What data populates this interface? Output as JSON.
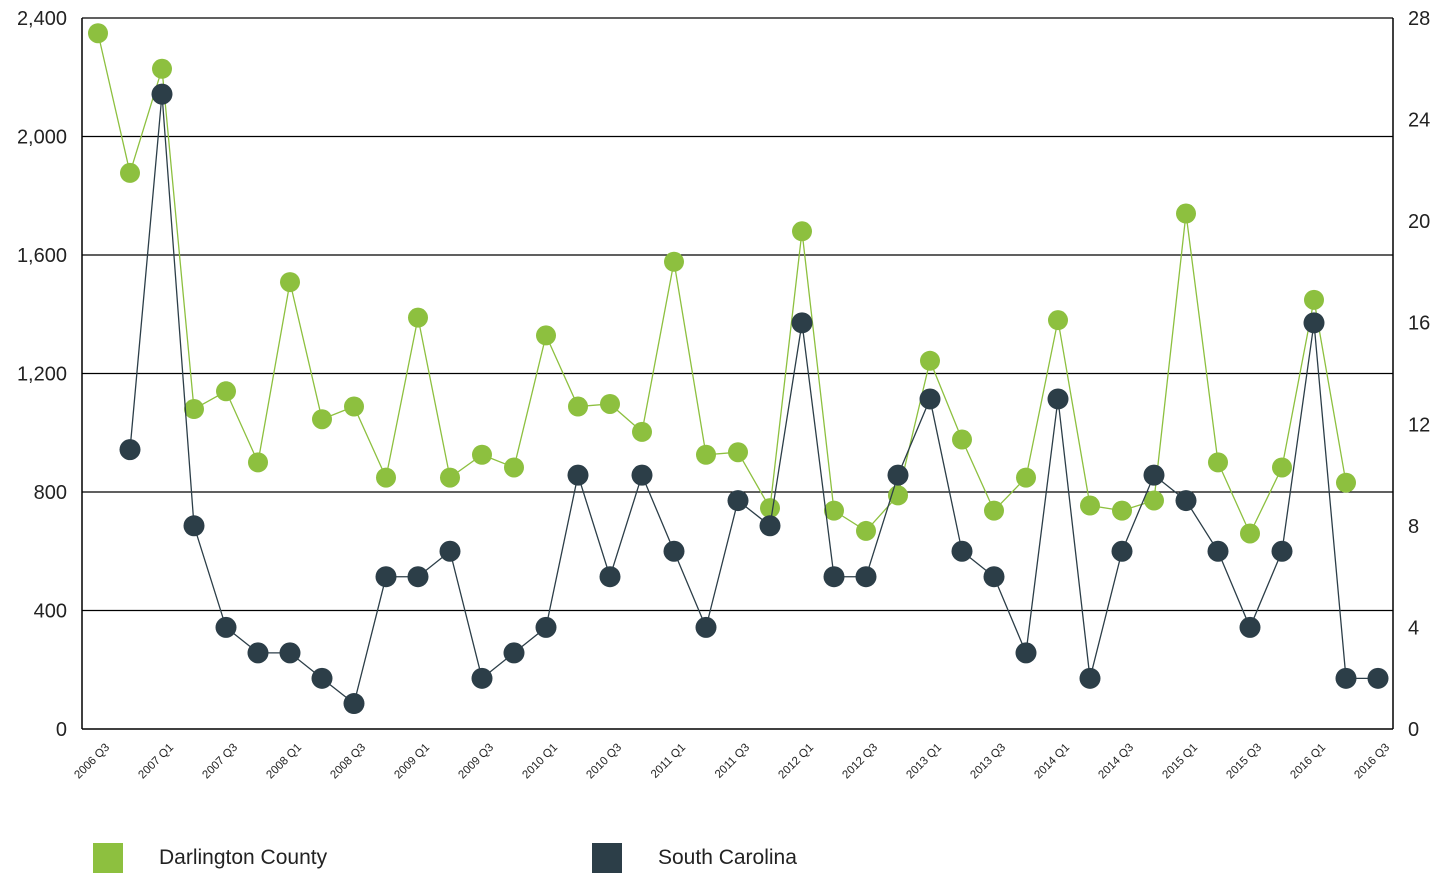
{
  "chart_data": {
    "type": "line",
    "categories": [
      "2006 Q3",
      "2006 Q4",
      "2007 Q1",
      "2007 Q2",
      "2007 Q3",
      "2007 Q4",
      "2008 Q1",
      "2008 Q2",
      "2008 Q3",
      "2008 Q4",
      "2009 Q1",
      "2009 Q2",
      "2009 Q3",
      "2009 Q4",
      "2010 Q1",
      "2010 Q2",
      "2010 Q3",
      "2010 Q4",
      "2011 Q1",
      "2011 Q2",
      "2011 Q3",
      "2011 Q4",
      "2012 Q1",
      "2012 Q2",
      "2012 Q3",
      "2012 Q4",
      "2013 Q1",
      "2013 Q2",
      "2013 Q3",
      "2013 Q4",
      "2014 Q1",
      "2014 Q2",
      "2014 Q3",
      "2014 Q4",
      "2015 Q1",
      "2015 Q2",
      "2015 Q3",
      "2015 Q4",
      "2016 Q1",
      "2016 Q2",
      "2016 Q3"
    ],
    "tick_labels": [
      "2006 Q3",
      "2007 Q1",
      "2007 Q3",
      "2008 Q1",
      "2008 Q3",
      "2009 Q1",
      "2009 Q3",
      "2010 Q1",
      "2010 Q3",
      "2011 Q1",
      "2011 Q3",
      "2012 Q1",
      "2012 Q3",
      "2013 Q1",
      "2013 Q3",
      "2014 Q1",
      "2014 Q3",
      "2015 Q1",
      "2015 Q3",
      "2016 Q1",
      "2016 Q3"
    ],
    "series": [
      {
        "name": "Darlington County",
        "axis": "right",
        "color": "#8dc03f",
        "values": [
          27.4,
          21.9,
          26.0,
          12.6,
          13.3,
          10.5,
          17.6,
          12.2,
          12.7,
          9.9,
          16.2,
          9.9,
          10.8,
          10.3,
          15.5,
          12.7,
          12.8,
          11.7,
          18.4,
          10.8,
          10.9,
          8.7,
          19.6,
          8.6,
          7.8,
          9.2,
          14.5,
          11.4,
          8.6,
          9.9,
          16.1,
          8.8,
          8.6,
          9.0,
          20.3,
          10.5,
          7.7,
          10.3,
          16.9,
          9.7,
          null
        ]
      },
      {
        "name": "South Carolina",
        "axis": "left",
        "color": "#2c3e48",
        "values": [
          null,
          943,
          2143,
          686,
          343,
          257,
          257,
          171,
          86,
          514,
          514,
          600,
          171,
          257,
          343,
          857,
          514,
          857,
          600,
          343,
          771,
          686,
          1371,
          514,
          514,
          857,
          1114,
          600,
          514,
          257,
          1114,
          171,
          600,
          857,
          771,
          600,
          343,
          600,
          1371,
          171,
          171
        ]
      }
    ],
    "y_left": {
      "ylim": [
        0,
        2400
      ],
      "ticks": [
        "0",
        "400",
        "800",
        "1,200",
        "1,600",
        "2,000",
        "2,400"
      ],
      "tick_values": [
        0,
        400,
        800,
        1200,
        1600,
        2000,
        2400
      ]
    },
    "y_right": {
      "ylim": [
        0,
        28
      ],
      "ticks": [
        "0",
        "4",
        "8",
        "12",
        "16",
        "20",
        "24",
        "28"
      ],
      "tick_values": [
        0,
        4,
        8,
        12,
        16,
        20,
        24,
        28
      ]
    },
    "grid": true,
    "legend": "bottom-left"
  },
  "legend": {
    "item1": "Darlington County",
    "item2": "South Carolina"
  },
  "colors": {
    "green": "#8dc03f",
    "dark": "#2c3e48",
    "grid": "#000000"
  }
}
